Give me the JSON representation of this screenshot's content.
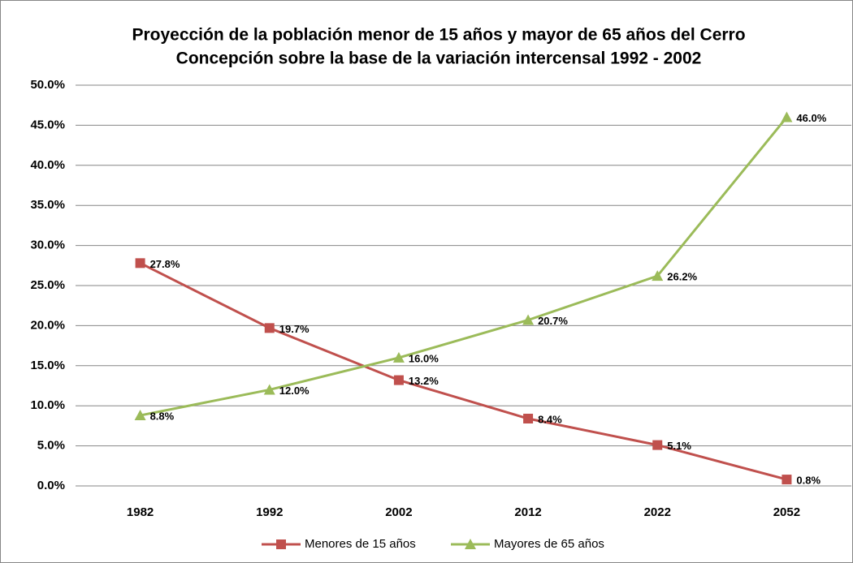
{
  "chart_data": {
    "type": "line",
    "title": [
      "Proyección de la población menor de 15 años y mayor de 65 años del Cerro",
      "Concepción sobre la base de la variación intercensal 1992 - 2002"
    ],
    "categories": [
      "1982",
      "1992",
      "2002",
      "2012",
      "2022",
      "2052"
    ],
    "series": [
      {
        "name": "Menores de 15 años",
        "color": "#c0504d",
        "marker": "square",
        "values": [
          27.8,
          19.7,
          13.2,
          8.4,
          5.1,
          0.8
        ],
        "value_labels": [
          "27.8%",
          "19.7%",
          "13.2%",
          "8.4%",
          "5.1%",
          "0.8%"
        ]
      },
      {
        "name": "Mayores de 65 años",
        "color": "#9bbb59",
        "marker": "triangle",
        "values": [
          8.8,
          12.0,
          16.0,
          20.7,
          26.2,
          46.0
        ],
        "value_labels": [
          "8.8%",
          "12.0%",
          "16.0%",
          "20.7%",
          "26.2%",
          "46.0%"
        ]
      }
    ],
    "ylim": [
      0,
      50
    ],
    "yticks": [
      {
        "value": 0,
        "label": "0.0%"
      },
      {
        "value": 5,
        "label": "5.0%"
      },
      {
        "value": 10,
        "label": "10.0%"
      },
      {
        "value": 15,
        "label": "15.0%"
      },
      {
        "value": 20,
        "label": "20.0%"
      },
      {
        "value": 25,
        "label": "25.0%"
      },
      {
        "value": 30,
        "label": "30.0%"
      },
      {
        "value": 35,
        "label": "35.0%"
      },
      {
        "value": 40,
        "label": "40.0%"
      },
      {
        "value": 45,
        "label": "45.0%"
      },
      {
        "value": 50,
        "label": "50.0%"
      }
    ],
    "grid": true,
    "legend": "bottom"
  }
}
